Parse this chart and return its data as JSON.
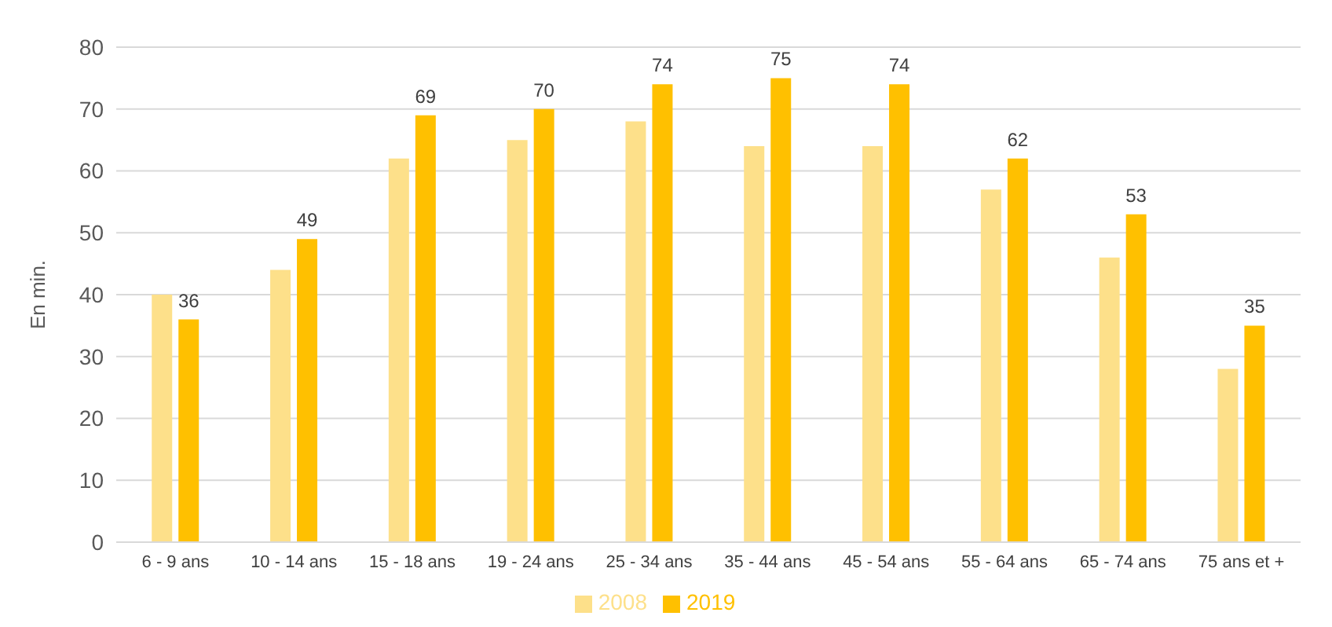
{
  "chart_data": {
    "type": "bar",
    "ylabel": "En min.",
    "categories": [
      "6 - 9 ans",
      "10 - 14 ans",
      "15 - 18 ans",
      "19 - 24 ans",
      "25 - 34 ans",
      "35 - 44 ans",
      "45 - 54 ans",
      "55 - 64 ans",
      "65 - 74 ans",
      "75 ans et +"
    ],
    "series": [
      {
        "name": "2008",
        "color": "#fde08a",
        "values": [
          40,
          44,
          62,
          65,
          68,
          64,
          64,
          57,
          46,
          28
        ]
      },
      {
        "name": "2019",
        "color": "#ffc000",
        "values": [
          36,
          49,
          69,
          70,
          74,
          75,
          74,
          62,
          53,
          35
        ],
        "value_labels": [
          "36",
          "49",
          "69",
          "70",
          "74",
          "75",
          "74",
          "62",
          "53",
          "35"
        ]
      }
    ],
    "ylim": [
      0,
      80
    ],
    "yticks": [
      0,
      10,
      20,
      30,
      40,
      50,
      60,
      70,
      80
    ],
    "grid": "y",
    "legend": "bottom"
  }
}
